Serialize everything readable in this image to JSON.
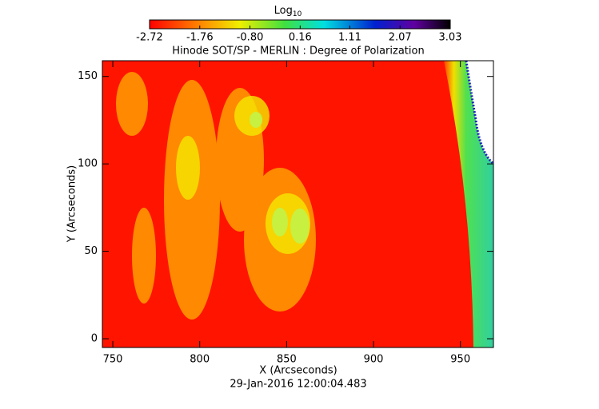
{
  "chart_data": {
    "type": "heatmap",
    "title": "Hinode SOT/SP - MERLIN : Degree of Polarization",
    "xlabel": "X (Arcseconds)",
    "ylabel": "Y (Arcseconds)",
    "date": "29-Jan-2016 12:00:04.483",
    "colorbar_label": "Log",
    "colorbar_label_sub": "10",
    "clim": [
      -2.72,
      3.03
    ],
    "cticks": [
      -2.72,
      -1.76,
      {
        "value": -0.8,
        "label": "-0.80"
      },
      0.16,
      1.11,
      2.07,
      3.03
    ],
    "xlim": [
      744,
      969
    ],
    "xticks": [
      750,
      800,
      850,
      900,
      950
    ],
    "ylim": [
      -5,
      159
    ],
    "yticks": [
      0,
      50,
      100,
      150
    ]
  }
}
